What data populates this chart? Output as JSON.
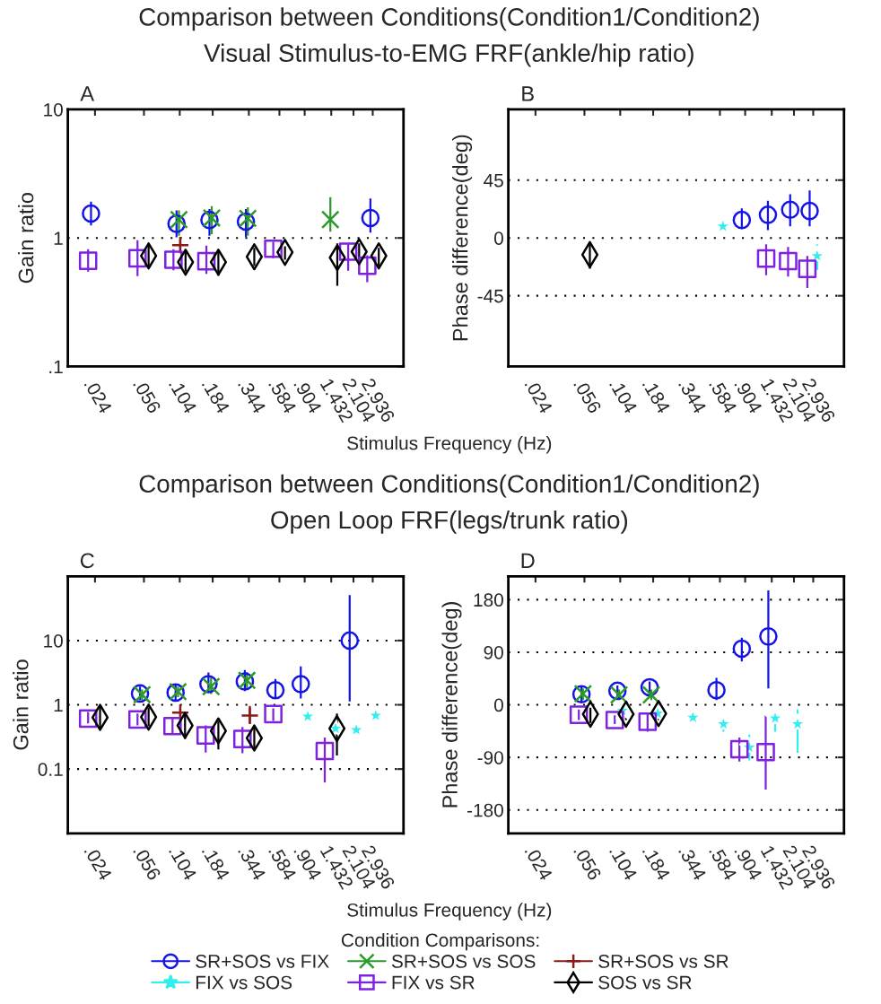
{
  "chart_data": [
    {
      "type": "scatter",
      "title": "Comparison between Conditions(Condition1/Condition2)",
      "subtitle": "Visual Stimulus-to-EMG FRF(ankle/hip ratio)",
      "xlabel": "Stimulus Frequency (Hz)",
      "ylabel": "Gain ratio",
      "annotations": [
        "A"
      ],
      "log": "xy",
      "grid": "y",
      "xlim": [
        0.015,
        5.0
      ],
      "xticks": [
        {
          "value": 0.024,
          "label": ".024"
        },
        {
          "value": 0.056,
          "label": ".056"
        },
        {
          "value": 0.104,
          "label": ".104"
        },
        {
          "value": 0.184,
          "label": ".184"
        },
        {
          "value": 0.344,
          "label": ".344"
        },
        {
          "value": 0.584,
          "label": ".584"
        },
        {
          "value": 0.904,
          "label": ".904"
        },
        {
          "value": 1.432,
          "label": "1.432"
        },
        {
          "value": 2.104,
          "label": "2.104"
        },
        {
          "value": 2.936,
          "label": "2.936"
        }
      ],
      "ylim": [
        0.1,
        10
      ],
      "yticks": [
        {
          "value": 0.1,
          "label": ".1"
        },
        1,
        10
      ],
      "series": [
        {
          "color": "#1414e6",
          "marker": "circle",
          "x": [
            0.0224,
            0.0984,
            0.174,
            0.327,
            2.82
          ],
          "values": [
            1.55,
            1.29,
            1.38,
            1.34,
            1.43
          ],
          "errors": [
            [
              1.25,
              1.92
            ],
            [
              1.01,
              1.64
            ],
            [
              1.04,
              1.68
            ],
            [
              1.01,
              1.68
            ],
            [
              1.1,
              2.03
            ]
          ]
        },
        {
          "color": "#2a9a2a",
          "marker": "cross",
          "x": [
            0.1026,
            0.181,
            0.338,
            1.41
          ],
          "values": [
            1.39,
            1.43,
            1.42,
            1.39
          ],
          "errors": [
            [
              1.04,
              1.64
            ],
            [
              1.07,
              1.77
            ],
            [
              1.04,
              1.73
            ],
            [
              1.12,
              2.08
            ]
          ]
        },
        {
          "color": "#8b1a1a",
          "marker": "plus",
          "x": [
            0.105
          ],
          "values": [
            0.88
          ],
          "errors": [
            [
              0.79,
              0.97
            ]
          ]
        },
        {
          "color": "#7f22e0",
          "marker": "square",
          "x": [
            0.0213,
            0.0501,
            0.0933,
            0.165,
            0.525,
            1.92,
            2.67
          ],
          "values": [
            0.665,
            0.695,
            0.676,
            0.659,
            0.824,
            0.782,
            0.608
          ],
          "errors": [
            [
              0.546,
              0.816
            ],
            [
              0.504,
              0.96
            ],
            [
              0.561,
              0.816
            ],
            [
              0.526,
              0.87
            ],
            [
              0.695,
              0.933
            ],
            [
              0.555,
              0.908
            ],
            [
              0.453,
              0.733
            ]
          ]
        },
        {
          "color": "#000000",
          "marker": "diamond",
          "x": [
            0.0607,
            0.115,
            0.203,
            0.378,
            0.643,
            1.59,
            2.32,
            3.26
          ],
          "values": [
            0.725,
            0.648,
            0.648,
            0.714,
            0.773,
            0.702,
            0.782,
            0.725
          ],
          "errors": [
            [
              0.585,
              0.884
            ],
            [
              0.546,
              0.794
            ],
            [
              0.509,
              0.794
            ],
            [
              0.608,
              0.838
            ],
            [
              0.676,
              0.861
            ],
            [
              0.425,
              0.908
            ],
            [
              0.676,
              0.908
            ],
            [
              0.608,
              0.838
            ]
          ]
        }
      ]
    },
    {
      "type": "scatter",
      "ylabel": "Phase difference(deg)",
      "annotations": [
        "B"
      ],
      "log": "x",
      "grid": "y",
      "xlim": [
        0.015,
        5.0
      ],
      "xticks": [
        {
          "value": 0.024,
          "label": ".024"
        },
        {
          "value": 0.056,
          "label": ".056"
        },
        {
          "value": 0.104,
          "label": ".104"
        },
        {
          "value": 0.184,
          "label": ".184"
        },
        {
          "value": 0.344,
          "label": ".344"
        },
        {
          "value": 0.584,
          "label": ".584"
        },
        {
          "value": 0.904,
          "label": ".904"
        },
        {
          "value": 1.432,
          "label": "1.432"
        },
        {
          "value": 2.104,
          "label": "2.104"
        },
        {
          "value": 2.936,
          "label": "2.936"
        }
      ],
      "ylim": [
        -100,
        100
      ],
      "yticks": [
        -45,
        0,
        45
      ],
      "series": [
        {
          "color": "#1414e6",
          "marker": "circle",
          "x": [
            0.853,
            1.34,
            1.97,
            2.76
          ],
          "values": [
            14,
            18,
            22,
            21
          ],
          "errors": [
            [
              7,
              23
            ],
            [
              6,
              29
            ],
            [
              9,
              34
            ],
            [
              9,
              37
            ]
          ]
        },
        {
          "color": "#33eeee",
          "marker": "star",
          "x": [
            0.615,
            3.14
          ],
          "values": [
            9,
            -14
          ],
          "errors": [
            null,
            [
              -25,
              -5
            ]
          ]
        },
        {
          "color": "#7f22e0",
          "marker": "square",
          "x": [
            1.3,
            1.9,
            2.65
          ],
          "values": [
            -16,
            -18,
            -24
          ],
          "errors": [
            [
              -29,
              -5
            ],
            [
              -30,
              -7
            ],
            [
              -39,
              -14
            ]
          ]
        },
        {
          "color": "#000000",
          "marker": "diamond",
          "x": [
            0.0615
          ],
          "values": [
            -13
          ],
          "errors": [
            [
              -24,
              -5
            ]
          ]
        }
      ]
    },
    {
      "type": "scatter",
      "title": "Comparison between Conditions(Condition1/Condition2)",
      "subtitle": "Open Loop FRF(legs/trunk ratio)",
      "xlabel": "Stimulus Frequency (Hz)",
      "ylabel": "Gain ratio",
      "annotations": [
        "C"
      ],
      "log": "xy",
      "grid": "y",
      "legend": "bottom",
      "legend_title": "Condition Comparisons:",
      "xlim": [
        0.015,
        5.0
      ],
      "xticks": [
        {
          "value": 0.024,
          "label": ".024"
        },
        {
          "value": 0.056,
          "label": ".056"
        },
        {
          "value": 0.104,
          "label": ".104"
        },
        {
          "value": 0.184,
          "label": ".184"
        },
        {
          "value": 0.344,
          "label": ".344"
        },
        {
          "value": 0.584,
          "label": ".584"
        },
        {
          "value": 0.904,
          "label": ".904"
        },
        {
          "value": 1.432,
          "label": "1.432"
        },
        {
          "value": 2.104,
          "label": "2.104"
        },
        {
          "value": 2.936,
          "label": "2.936"
        }
      ],
      "ylim": [
        0.01,
        100
      ],
      "yticks": [
        0.1,
        1,
        10
      ],
      "series": [
        {
          "name": "SR+SOS vs FIX",
          "color": "#1414e6",
          "marker": "circle",
          "x": [
            0.0523,
            0.0968,
            0.171,
            0.321,
            0.545,
            0.845,
            1.97
          ],
          "values": [
            1.5,
            1.55,
            2.1,
            2.31,
            1.69,
            2.1,
            10
          ],
          "errors": [
            [
              1.19,
              1.92
            ],
            [
              1.19,
              2.03
            ],
            [
              1.55,
              3.19
            ],
            [
              1.64,
              3.47
            ],
            [
              1.25,
              2.52
            ],
            [
              1.25,
              3.95
            ],
            [
              1.13,
              50.9
            ]
          ]
        },
        {
          "name": "SR+SOS vs SOS",
          "color": "#2a9a2a",
          "marker": "cross",
          "x": [
            0.0542,
            0.101,
            0.179,
            0.333
          ],
          "values": [
            1.44,
            1.6,
            1.92,
            2.4
          ],
          "errors": [
            [
              1.19,
              1.73
            ],
            [
              1.32,
              1.92
            ],
            [
              1.47,
              2.66
            ],
            [
              1.8,
              3.2
            ]
          ]
        },
        {
          "name": "SR+SOS vs SR",
          "color": "#8b1a1a",
          "marker": "plus",
          "x": [
            0.105,
            0.35
          ],
          "values": [
            0.756,
            0.68
          ],
          "errors": [
            [
              0.624,
              0.861
            ],
            [
              0.503,
              0.958
            ]
          ]
        },
        {
          "name": "FIX vs SOS",
          "color": "#33eeee",
          "marker": "star",
          "x": [
            0.953,
            1.54,
            2.21,
            3.09
          ],
          "values": [
            0.658,
            0.428,
            0.406,
            0.68
          ],
          "errors": [
            null,
            null,
            null,
            null
          ]
        },
        {
          "name": "FIX vs SR",
          "color": "#7f22e0",
          "marker": "square",
          "x": [
            0.0213,
            0.0501,
            0.0918,
            0.163,
            0.308,
            0.525,
            1.28
          ],
          "values": [
            0.61,
            0.591,
            0.467,
            0.334,
            0.294,
            0.717,
            0.191
          ],
          "errors": [
            [
              0.514,
              0.773
            ],
            [
              0.477,
              0.732
            ],
            [
              0.345,
              0.624
            ],
            [
              0.181,
              0.477
            ],
            [
              0.176,
              0.452
            ],
            [
              0.56,
              0.879
            ],
            [
              0.062,
              0.31
            ]
          ]
        },
        {
          "name": "SOS vs SR",
          "color": "#000000",
          "marker": "diamond",
          "x": [
            0.0262,
            0.0607,
            0.114,
            0.203,
            0.378,
            1.58
          ],
          "values": [
            0.637,
            0.644,
            0.477,
            0.393,
            0.304,
            0.428
          ],
          "errors": [
            [
              0.406,
              0.958
            ],
            [
              0.462,
              0.908
            ],
            [
              0.294,
              0.694
            ],
            [
              0.202,
              0.56
            ],
            [
              0.191,
              0.452
            ],
            [
              0.163,
              0.732
            ]
          ]
        }
      ]
    },
    {
      "type": "scatter",
      "ylabel": "Phase difference(deg)",
      "annotations": [
        "D"
      ],
      "log": "x",
      "grid": "y",
      "xlim": [
        0.015,
        5.0
      ],
      "xticks": [
        {
          "value": 0.024,
          "label": ".024"
        },
        {
          "value": 0.056,
          "label": ".056"
        },
        {
          "value": 0.104,
          "label": ".104"
        },
        {
          "value": 0.184,
          "label": ".184"
        },
        {
          "value": 0.344,
          "label": ".344"
        },
        {
          "value": 0.584,
          "label": ".584"
        },
        {
          "value": 0.904,
          "label": ".904"
        },
        {
          "value": 1.432,
          "label": "1.432"
        },
        {
          "value": 2.104,
          "label": "2.104"
        },
        {
          "value": 2.936,
          "label": "2.936"
        }
      ],
      "ylim": [
        -220,
        220
      ],
      "yticks": [
        -180,
        -90,
        0,
        90,
        180
      ],
      "series": [
        {
          "color": "#1414e6",
          "marker": "circle",
          "x": [
            0.0532,
            0.0991,
            0.173,
            0.55,
            0.853,
            1.35
          ],
          "values": [
            18,
            24,
            30,
            25,
            96,
            117
          ],
          "errors": [
            [
              5,
              31
            ],
            [
              13,
              33
            ],
            [
              19,
              40
            ],
            [
              8,
              46
            ],
            [
              74,
              115
            ],
            [
              28,
              196
            ]
          ]
        },
        {
          "color": "#2a9a2a",
          "marker": "cross",
          "x": [
            0.0546,
            0.102,
            0.178
          ],
          "values": [
            19,
            17,
            17
          ],
          "errors": [
            [
              8,
              28
            ],
            [
              8,
              26
            ],
            [
              8,
              26
            ]
          ]
        },
        {
          "color": "#33eeee",
          "marker": "star",
          "x": [
            0.108,
            0.199,
            0.366,
            0.621,
            0.971,
            1.52,
            2.24
          ],
          "values": [
            -10,
            -15,
            -22,
            -33,
            -73,
            -23,
            -33
          ],
          "errors": [
            null,
            null,
            null,
            [
              -46,
              -33
            ],
            [
              -95,
              -51
            ],
            [
              -46,
              -12
            ],
            [
              -82,
              -8
            ]
          ]
        },
        {
          "color": "#7f22e0",
          "marker": "square",
          "x": [
            0.0508,
            0.0946,
            0.167,
            0.818,
            1.29
          ],
          "values": [
            -17,
            -26,
            -29,
            -76,
            -81
          ],
          "errors": [
            [
              -26,
              -8
            ],
            [
              -33,
              -18
            ],
            [
              -46,
              -15
            ],
            [
              -97,
              -56
            ],
            [
              -145,
              -18
            ]
          ]
        },
        {
          "color": "#000000",
          "marker": "diamond",
          "x": [
            0.0621,
            0.115,
            0.202
          ],
          "values": [
            -16,
            -16,
            -15
          ],
          "errors": [
            [
              -31,
              -5
            ],
            [
              -26,
              -5
            ],
            [
              -26,
              -5
            ]
          ]
        }
      ]
    }
  ]
}
